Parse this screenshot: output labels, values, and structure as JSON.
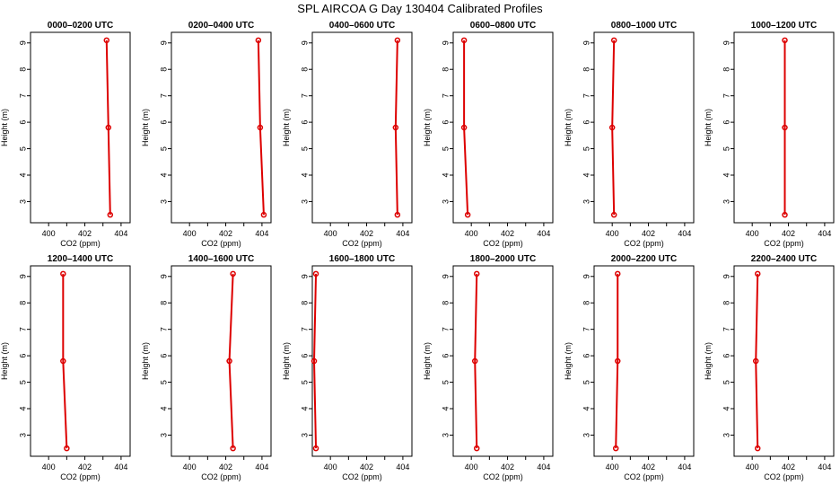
{
  "title": "SPL AIRCOA G  Day 130404  Calibrated Profiles",
  "colors": {
    "series": "#dd0000",
    "axis": "#000000"
  },
  "axes": {
    "xlabel": "CO2 (ppm)",
    "ylabel": "Height (m)",
    "xlim": [
      399,
      404.5
    ],
    "ylim": [
      2.2,
      9.4
    ],
    "xticks": [
      400,
      402,
      404
    ],
    "yticks": [
      3,
      4,
      5,
      6,
      7,
      8,
      9
    ]
  },
  "chart_data": [
    {
      "type": "line",
      "title": "0000–0200 UTC",
      "xlabel": "CO2 (ppm)",
      "ylabel": "Height (m)",
      "xlim": [
        399,
        404.5
      ],
      "ylim": [
        2.2,
        9.4
      ],
      "series": [
        {
          "x": [
            403.2,
            403.3,
            403.4
          ],
          "y": [
            9.1,
            5.8,
            2.5
          ]
        }
      ]
    },
    {
      "type": "line",
      "title": "0200–0400 UTC",
      "xlabel": "CO2 (ppm)",
      "ylabel": "Height (m)",
      "xlim": [
        399,
        404.5
      ],
      "ylim": [
        2.2,
        9.4
      ],
      "series": [
        {
          "x": [
            403.8,
            403.9,
            404.1
          ],
          "y": [
            9.1,
            5.8,
            2.5
          ]
        }
      ]
    },
    {
      "type": "line",
      "title": "0400–0600 UTC",
      "xlabel": "CO2 (ppm)",
      "ylabel": "Height (m)",
      "xlim": [
        399,
        404.5
      ],
      "ylim": [
        2.2,
        9.4
      ],
      "series": [
        {
          "x": [
            403.7,
            403.6,
            403.7
          ],
          "y": [
            9.1,
            5.8,
            2.5
          ]
        }
      ]
    },
    {
      "type": "line",
      "title": "0600–0800 UTC",
      "xlabel": "CO2 (ppm)",
      "ylabel": "Height (m)",
      "xlim": [
        399,
        404.5
      ],
      "ylim": [
        2.2,
        9.4
      ],
      "series": [
        {
          "x": [
            399.6,
            399.6,
            399.8
          ],
          "y": [
            9.1,
            5.8,
            2.5
          ]
        }
      ]
    },
    {
      "type": "line",
      "title": "0800–1000 UTC",
      "xlabel": "CO2 (ppm)",
      "ylabel": "Height (m)",
      "xlim": [
        399,
        404.5
      ],
      "ylim": [
        2.2,
        9.4
      ],
      "series": [
        {
          "x": [
            400.1,
            400.0,
            400.1
          ],
          "y": [
            9.1,
            5.8,
            2.5
          ]
        }
      ]
    },
    {
      "type": "line",
      "title": "1000–1200 UTC",
      "xlabel": "CO2 (ppm)",
      "ylabel": "Height (m)",
      "xlim": [
        399,
        404.5
      ],
      "ylim": [
        2.2,
        9.4
      ],
      "series": [
        {
          "x": [
            401.8,
            401.8,
            401.8
          ],
          "y": [
            9.1,
            5.8,
            2.5
          ]
        }
      ]
    },
    {
      "type": "line",
      "title": "1200–1400 UTC",
      "xlabel": "CO2 (ppm)",
      "ylabel": "Height (m)",
      "xlim": [
        399,
        404.5
      ],
      "ylim": [
        2.2,
        9.4
      ],
      "series": [
        {
          "x": [
            400.8,
            400.8,
            401.0
          ],
          "y": [
            9.1,
            5.8,
            2.5
          ]
        }
      ]
    },
    {
      "type": "line",
      "title": "1400–1600 UTC",
      "xlabel": "CO2 (ppm)",
      "ylabel": "Height (m)",
      "xlim": [
        399,
        404.5
      ],
      "ylim": [
        2.2,
        9.4
      ],
      "series": [
        {
          "x": [
            402.4,
            402.2,
            402.4
          ],
          "y": [
            9.1,
            5.8,
            2.5
          ]
        }
      ]
    },
    {
      "type": "line",
      "title": "1600–1800 UTC",
      "xlabel": "CO2 (ppm)",
      "ylabel": "Height (m)",
      "xlim": [
        399,
        404.5
      ],
      "ylim": [
        2.2,
        9.4
      ],
      "series": [
        {
          "x": [
            399.2,
            399.1,
            399.2
          ],
          "y": [
            9.1,
            5.8,
            2.5
          ]
        }
      ]
    },
    {
      "type": "line",
      "title": "1800–2000 UTC",
      "xlabel": "CO2 (ppm)",
      "ylabel": "Height (m)",
      "xlim": [
        399,
        404.5
      ],
      "ylim": [
        2.2,
        9.4
      ],
      "series": [
        {
          "x": [
            400.3,
            400.2,
            400.3
          ],
          "y": [
            9.1,
            5.8,
            2.5
          ]
        }
      ]
    },
    {
      "type": "line",
      "title": "2000–2200 UTC",
      "xlabel": "CO2 (ppm)",
      "ylabel": "Height (m)",
      "xlim": [
        399,
        404.5
      ],
      "ylim": [
        2.2,
        9.4
      ],
      "series": [
        {
          "x": [
            400.3,
            400.3,
            400.2
          ],
          "y": [
            9.1,
            5.8,
            2.5
          ]
        }
      ]
    },
    {
      "type": "line",
      "title": "2200–2400 UTC",
      "xlabel": "CO2 (ppm)",
      "ylabel": "Height (m)",
      "xlim": [
        399,
        404.5
      ],
      "ylim": [
        2.2,
        9.4
      ],
      "series": [
        {
          "x": [
            400.3,
            400.2,
            400.3
          ],
          "y": [
            9.1,
            5.8,
            2.5
          ]
        }
      ]
    }
  ]
}
